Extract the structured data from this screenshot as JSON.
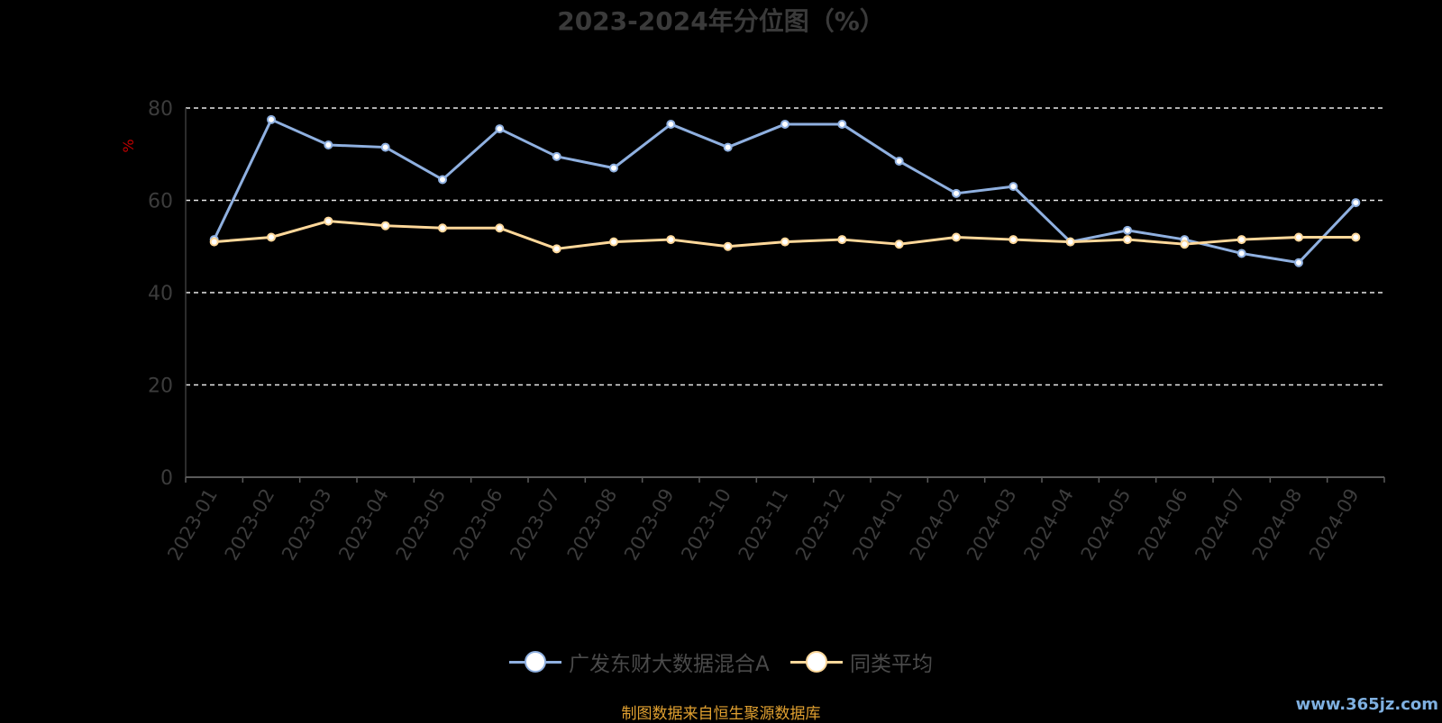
{
  "title": "2023-2024年分位图（%）",
  "footer": "制图数据来自恒生聚源数据库",
  "watermark": "www.365jz.com",
  "chart_data": {
    "type": "line",
    "title": "2023-2024年分位图（%）",
    "ylabel": "%",
    "ylim": [
      0,
      80
    ],
    "yticks": [
      0,
      20,
      40,
      60,
      80
    ],
    "grid": true,
    "legend_position": "bottom",
    "categories": [
      "2023-01",
      "2023-02",
      "2023-03",
      "2023-04",
      "2023-05",
      "2023-06",
      "2023-07",
      "2023-08",
      "2023-09",
      "2023-10",
      "2023-11",
      "2023-12",
      "2024-01",
      "2024-02",
      "2024-03",
      "2024-04",
      "2024-05",
      "2024-06",
      "2024-07",
      "2024-08",
      "2024-09"
    ],
    "series": [
      {
        "name": "广发东财大数据混合A",
        "color": "#8fb0e0",
        "values": [
          51.5,
          77.5,
          72,
          71.5,
          64.5,
          75.5,
          69.5,
          67,
          76.5,
          71.5,
          76.5,
          76.5,
          68.5,
          61.5,
          63,
          51,
          53.5,
          51.5,
          48.5,
          46.5,
          59.5
        ]
      },
      {
        "name": "同类平均",
        "color": "#ffd89a",
        "values": [
          51,
          52,
          55.5,
          54.5,
          54,
          54,
          49.5,
          51,
          51.5,
          50,
          51,
          51.5,
          50.5,
          52,
          51.5,
          51,
          51.5,
          50.5,
          51.5,
          52,
          52
        ]
      }
    ]
  }
}
